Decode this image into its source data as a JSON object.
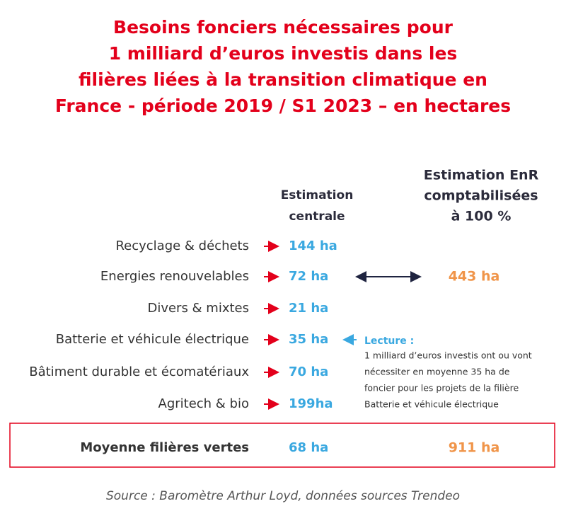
{
  "title": {
    "lines": [
      "Besoins fonciers nécessaires pour",
      "1 milliard d’euros investis dans les",
      "filières liées à la transition climatique en",
      "France - période 2019 / S1 2023 –  en hectares"
    ]
  },
  "headers": {
    "central": [
      "Estimation",
      "centrale"
    ],
    "enr": [
      "Estimation EnR",
      "comptabilisées",
      "à 100 %"
    ]
  },
  "rows": [
    {
      "label": "Recyclage & déchets",
      "value": "144 ha"
    },
    {
      "label": "Energies renouvelables",
      "value": "72 ha",
      "enr": "443 ha"
    },
    {
      "label": "Divers & mixtes",
      "value": "21 ha"
    },
    {
      "label": "Batterie et véhicule électrique",
      "value": "35 ha"
    },
    {
      "label": "Bâtiment durable et écomatériaux",
      "value": "70 ha"
    },
    {
      "label": "Agritech & bio",
      "value": "199ha"
    }
  ],
  "lecture": {
    "title": "Lecture :",
    "lines": [
      "1 milliard d’euros investis ont ou vont",
      "nécessiter en moyenne 35 ha de",
      "foncier pour les projets de la filière",
      "Batterie et véhicule électrique"
    ]
  },
  "average": {
    "label": "Moyenne filières vertes",
    "value": "68 ha",
    "enr": "911 ha"
  },
  "source": "Source : Baromètre Arthur Loyd, données sources Trendeo"
}
